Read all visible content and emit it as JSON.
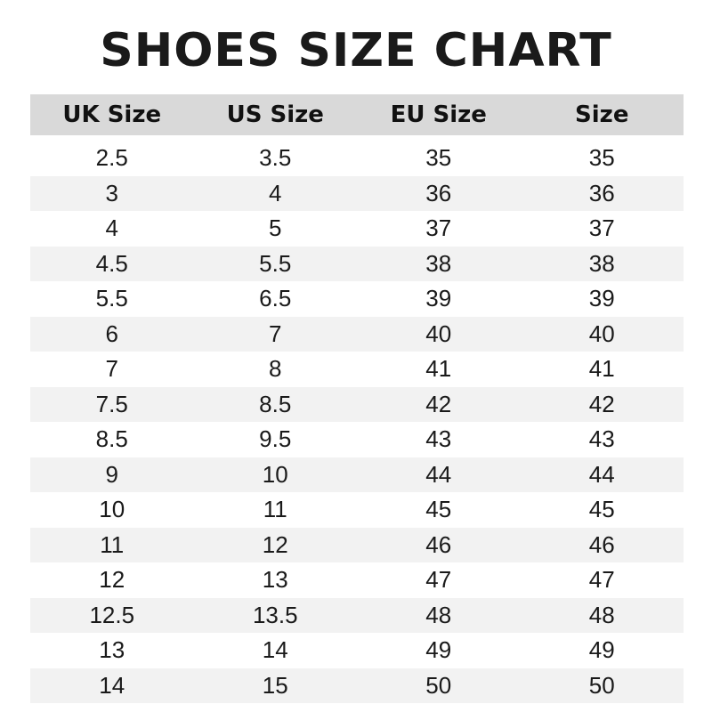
{
  "title": "SHOES SIZE CHART",
  "columns": [
    "UK Size",
    "US Size",
    "EU Size",
    "Size"
  ],
  "rows": [
    [
      "2.5",
      "3.5",
      "35",
      "35"
    ],
    [
      "3",
      "4",
      "36",
      "36"
    ],
    [
      "4",
      "5",
      "37",
      "37"
    ],
    [
      "4.5",
      "5.5",
      "38",
      "38"
    ],
    [
      "5.5",
      "6.5",
      "39",
      "39"
    ],
    [
      "6",
      "7",
      "40",
      "40"
    ],
    [
      "7",
      "8",
      "41",
      "41"
    ],
    [
      "7.5",
      "8.5",
      "42",
      "42"
    ],
    [
      "8.5",
      "9.5",
      "43",
      "43"
    ],
    [
      "9",
      "10",
      "44",
      "44"
    ],
    [
      "10",
      "11",
      "45",
      "45"
    ],
    [
      "11",
      "12",
      "46",
      "46"
    ],
    [
      "12",
      "13",
      "47",
      "47"
    ],
    [
      "12.5",
      "13.5",
      "48",
      "48"
    ],
    [
      "13",
      "14",
      "49",
      "49"
    ],
    [
      "14",
      "15",
      "50",
      "50"
    ]
  ],
  "colors": {
    "header_bg": "#d9d9d9",
    "stripe_bg": "#f2f2f2"
  }
}
